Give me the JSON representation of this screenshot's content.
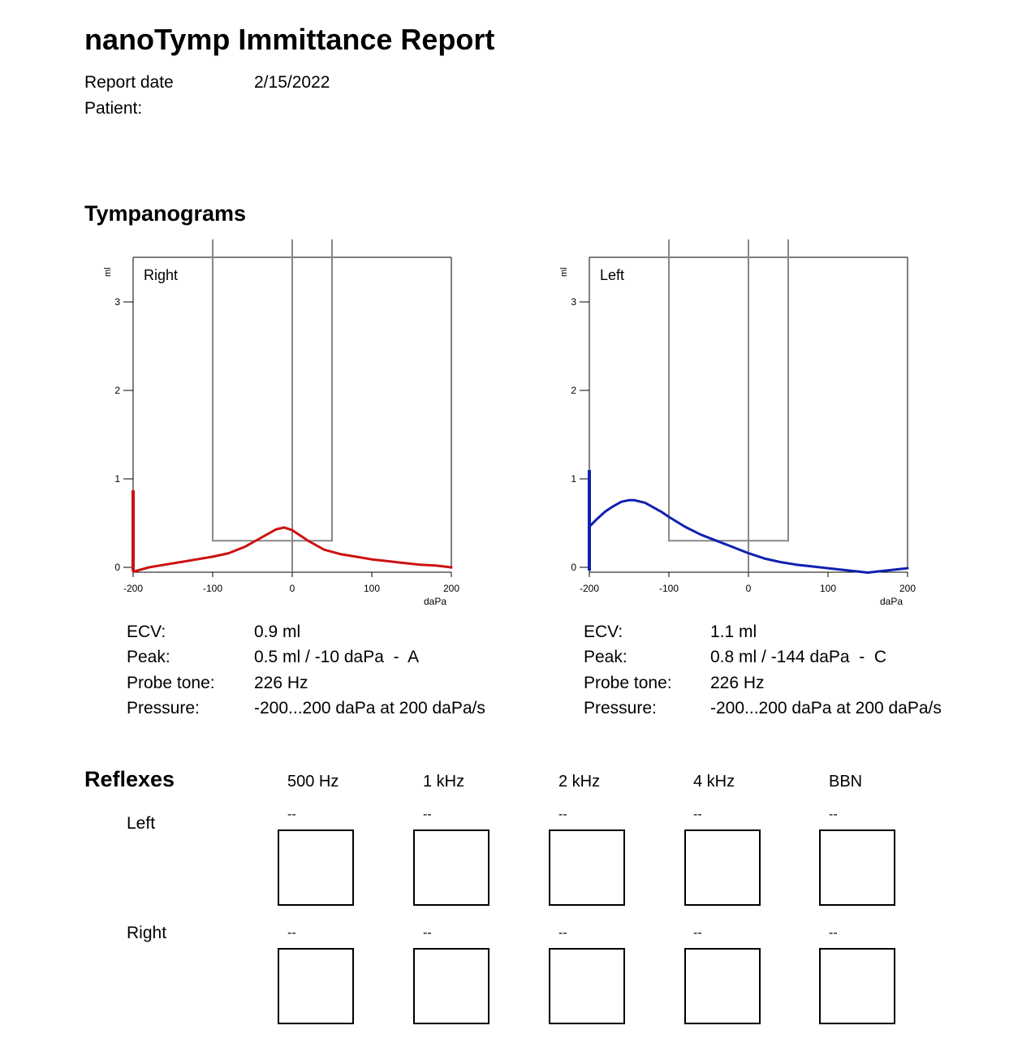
{
  "report": {
    "title": "nanoTymp Immittance Report",
    "report_date_label": "Report date",
    "report_date_value": "2/15/2022",
    "patient_label": "Patient:"
  },
  "tympanograms": {
    "section_title": "Tympanograms",
    "right": {
      "ear_label": "Right",
      "y_unit": "ml",
      "x_unit": "daPa",
      "y_ticks": [
        "0",
        "1",
        "2",
        "3"
      ],
      "x_ticks": [
        "-200",
        "-100",
        "0",
        "100",
        "200"
      ],
      "curve_color": "#cc1111",
      "ecv_label": "ECV:",
      "ecv_value": "0.9 ml",
      "peak_label": "Peak:",
      "peak_value": "0.5 ml / -10 daPa  -  A",
      "probe_label": "Probe tone:",
      "probe_value": "226 Hz",
      "pressure_label": "Pressure:",
      "pressure_value": "-200...200 daPa at 200 daPa/s"
    },
    "left": {
      "ear_label": "Left",
      "y_unit": "ml",
      "x_unit": "daPa",
      "y_ticks": [
        "0",
        "1",
        "2",
        "3"
      ],
      "x_ticks": [
        "-200",
        "-100",
        "0",
        "100",
        "200"
      ],
      "curve_color": "#1020b0",
      "ecv_label": "ECV:",
      "ecv_value": "1.1 ml",
      "peak_label": "Peak:",
      "peak_value": "0.8 ml / -144 daPa  -  C",
      "probe_label": "Probe tone:",
      "probe_value": "226 Hz",
      "pressure_label": "Pressure:",
      "pressure_value": "-200...200 daPa at 200 daPa/s"
    }
  },
  "chart_data": [
    {
      "type": "line",
      "title": "Right",
      "xlabel": "daPa",
      "ylabel": "ml",
      "xlim": [
        -200,
        200
      ],
      "ylim": [
        -0.05,
        3.5
      ],
      "grid": false,
      "normal_region": {
        "pressure": [
          -100,
          50
        ],
        "compliance_min": 0.3
      },
      "ecv_marker": {
        "x": -200,
        "value": 0.87
      },
      "series": [
        {
          "color": "#cc1111",
          "x": [
            -200,
            -180,
            -160,
            -140,
            -120,
            -100,
            -80,
            -60,
            -40,
            -20,
            -10,
            0,
            20,
            40,
            60,
            80,
            100,
            120,
            140,
            160,
            180,
            200
          ],
          "y": [
            -0.05,
            0.0,
            0.03,
            0.06,
            0.09,
            0.12,
            0.16,
            0.23,
            0.33,
            0.43,
            0.45,
            0.42,
            0.3,
            0.2,
            0.15,
            0.12,
            0.09,
            0.07,
            0.05,
            0.03,
            0.02,
            0.0
          ]
        }
      ]
    },
    {
      "type": "line",
      "title": "Left",
      "xlabel": "daPa",
      "ylabel": "ml",
      "xlim": [
        -200,
        200
      ],
      "ylim": [
        -0.05,
        3.5
      ],
      "grid": false,
      "normal_region": {
        "pressure": [
          -100,
          50
        ],
        "compliance_min": 0.3
      },
      "ecv_marker": {
        "x": -200,
        "value": 1.1
      },
      "series": [
        {
          "color": "#1020b0",
          "x": [
            -200,
            -190,
            -180,
            -170,
            -160,
            -150,
            -144,
            -130,
            -110,
            -100,
            -80,
            -60,
            -40,
            -20,
            0,
            20,
            40,
            60,
            80,
            100,
            120,
            140,
            150,
            160,
            180,
            200
          ],
          "y": [
            0.46,
            0.55,
            0.63,
            0.69,
            0.74,
            0.76,
            0.76,
            0.73,
            0.63,
            0.57,
            0.46,
            0.37,
            0.3,
            0.23,
            0.16,
            0.1,
            0.06,
            0.03,
            0.01,
            -0.01,
            -0.03,
            -0.05,
            -0.06,
            -0.05,
            -0.03,
            -0.01
          ]
        }
      ]
    }
  ],
  "reflexes": {
    "section_title": "Reflexes",
    "frequencies": [
      "500 Hz",
      "1 kHz",
      "2 kHz",
      "4 kHz",
      "BBN"
    ],
    "left": {
      "label": "Left",
      "values": [
        "--",
        "--",
        "--",
        "--",
        "--"
      ]
    },
    "right": {
      "label": "Right",
      "values": [
        "--",
        "--",
        "--",
        "--",
        "--"
      ]
    }
  }
}
